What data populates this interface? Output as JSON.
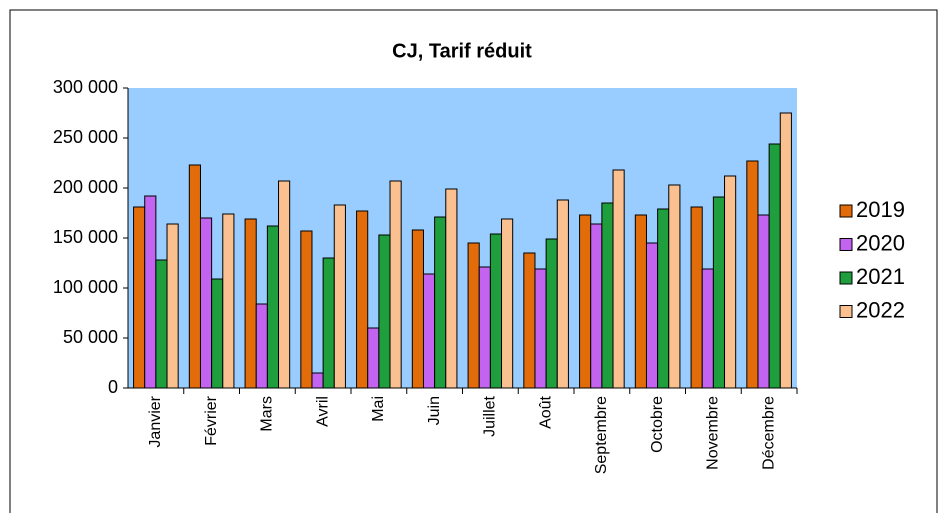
{
  "chart_data": {
    "type": "bar",
    "title": "CJ, Tarif réduit",
    "categories": [
      "Janvier",
      "Février",
      "Mars",
      "Avril",
      "Mai",
      "Juin",
      "Juillet",
      "Août",
      "Septembre",
      "Octobre",
      "Novembre",
      "Décembre"
    ],
    "series": [
      {
        "name": "2019",
        "color": "#e36c0a",
        "values": [
          181000,
          223000,
          169000,
          157000,
          177000,
          158000,
          145000,
          135000,
          173000,
          173000,
          181000,
          227000
        ]
      },
      {
        "name": "2020",
        "color": "#c264f0",
        "values": [
          192000,
          170000,
          84000,
          15000,
          60000,
          114000,
          121000,
          119000,
          164000,
          145000,
          119000,
          173000
        ]
      },
      {
        "name": "2021",
        "color": "#1e9e3c",
        "values": [
          128000,
          109000,
          162000,
          130000,
          153000,
          171000,
          154000,
          149000,
          185000,
          179000,
          191000,
          244000
        ]
      },
      {
        "name": "2022",
        "color": "#fac090",
        "values": [
          164000,
          174000,
          207000,
          183000,
          207000,
          199000,
          169000,
          188000,
          218000,
          203000,
          212000,
          275000
        ]
      }
    ],
    "ylim": [
      0,
      300000
    ],
    "yticks": [
      0,
      {
        "value": 50000,
        "label": "50 000"
      },
      {
        "value": 100000,
        "label": "100 000"
      },
      {
        "value": 150000,
        "label": "150 000"
      },
      {
        "value": 200000,
        "label": "200 000"
      },
      {
        "value": 250000,
        "label": "250 000"
      },
      {
        "value": 300000,
        "label": "300 000"
      }
    ],
    "plot_background": "#99ccff",
    "legend": "right"
  }
}
